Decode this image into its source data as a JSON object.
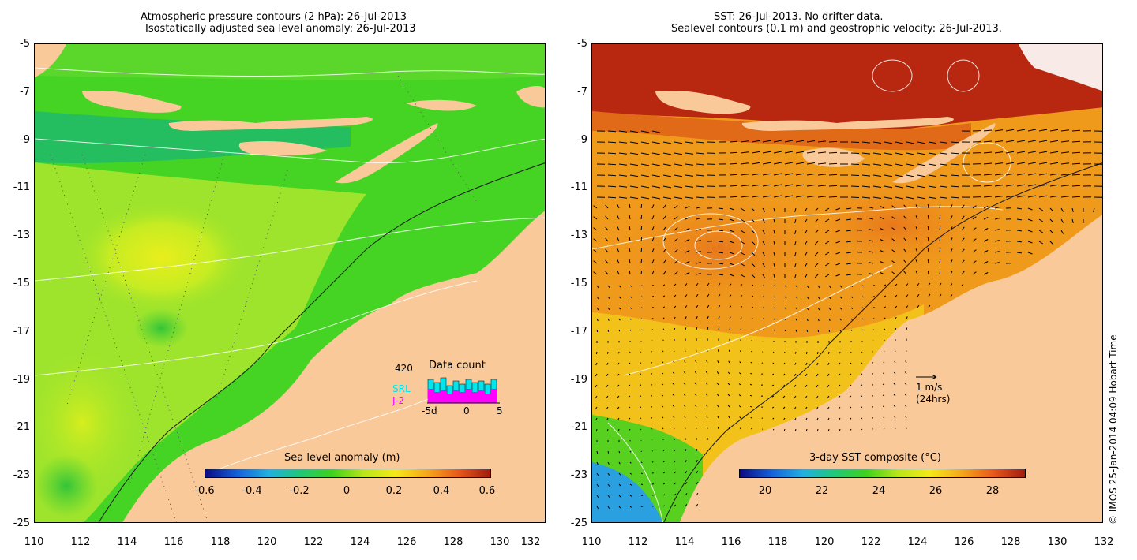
{
  "left_panel": {
    "title_line1": "Atmospheric pressure contours (2 hPa): 26-Jul-2013",
    "title_line2": "Isostatically adjusted sea level anomaly: 26-Jul-2013",
    "colorbar_title": "Sea level anomaly (m)",
    "colorbar_ticks": [
      "-0.6",
      "-0.4",
      "-0.2",
      "0",
      "0.2",
      "0.4",
      "0.6"
    ],
    "data_count": {
      "title": "Data count",
      "value": "420",
      "series_srl": "SRL",
      "series_j2": "J-2",
      "axis_labels": [
        "-5d",
        "0",
        "5"
      ],
      "srl_color": "#00e5ee",
      "j2_color": "#ff00ff"
    }
  },
  "right_panel": {
    "title_line1": "SST: 26-Jul-2013. No drifter data.",
    "title_line2": "Sealevel contours (0.1 m) and geostrophic velocity: 26-Jul-2013.",
    "colorbar_title": "3-day SST composite (°C)",
    "colorbar_ticks": [
      "20",
      "22",
      "24",
      "26",
      "28"
    ],
    "velocity_scale": "1 m/s",
    "velocity_scale_note": "(24hrs)"
  },
  "y_ticks": [
    "-5",
    "-7",
    "-9",
    "-11",
    "-13",
    "-15",
    "-17",
    "-19",
    "-21",
    "-23",
    "-25"
  ],
  "x_ticks": [
    "110",
    "112",
    "114",
    "116",
    "118",
    "120",
    "122",
    "124",
    "126",
    "128",
    "130",
    "132"
  ],
  "footer": "© IMOS 25-Jan-2014 04:09 Hobart Time",
  "colors": {
    "land": "#f9c99a",
    "sla_background": "#3fd421",
    "sst_background": "#f09a1c"
  }
}
